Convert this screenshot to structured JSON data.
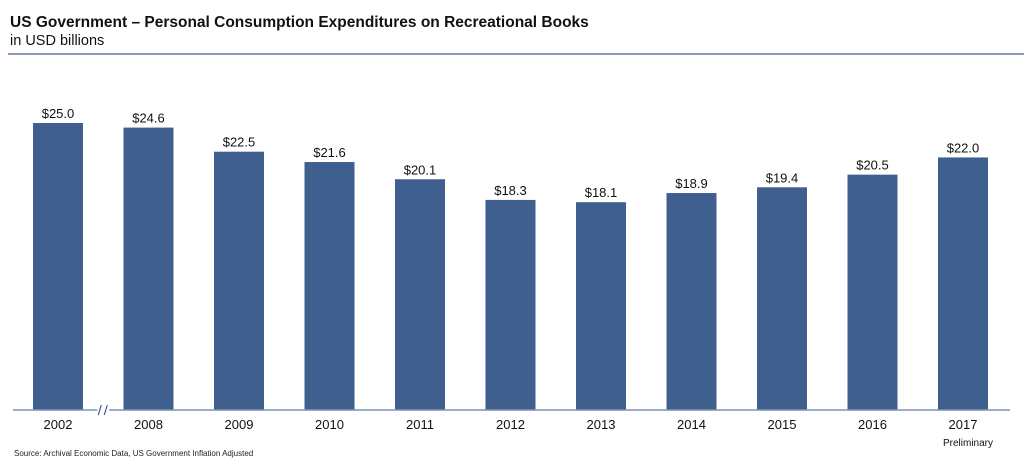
{
  "header": {
    "title": "US Government – Personal Consumption Expenditures on Recreational Books",
    "subtitle": "in USD billions"
  },
  "footer": {
    "source": "Source: Archival Economic Data, US Government Inflation Adjusted"
  },
  "chart_data": {
    "type": "bar",
    "title": "US Government – Personal Consumption Expenditures on Recreational Books",
    "subtitle": "in USD billions",
    "categories": [
      "2002",
      "2008",
      "2009",
      "2010",
      "2011",
      "2012",
      "2013",
      "2014",
      "2015",
      "2016",
      "2017"
    ],
    "values": [
      25.0,
      24.6,
      22.5,
      21.6,
      20.1,
      18.3,
      18.1,
      18.9,
      19.4,
      20.5,
      22.0
    ],
    "data_labels": [
      "$25.0",
      "$24.6",
      "$22.5",
      "$21.6",
      "$20.1",
      "$18.3",
      "$18.1",
      "$18.9",
      "$19.4",
      "$20.5",
      "$22.0"
    ],
    "annotations": [
      {
        "category": "2017",
        "text": "Preliminary"
      }
    ],
    "axis_break_between": [
      "2002",
      "2008"
    ],
    "ylim": [
      0,
      25
    ],
    "grid": false,
    "bar_color": "#3f5f8f"
  }
}
